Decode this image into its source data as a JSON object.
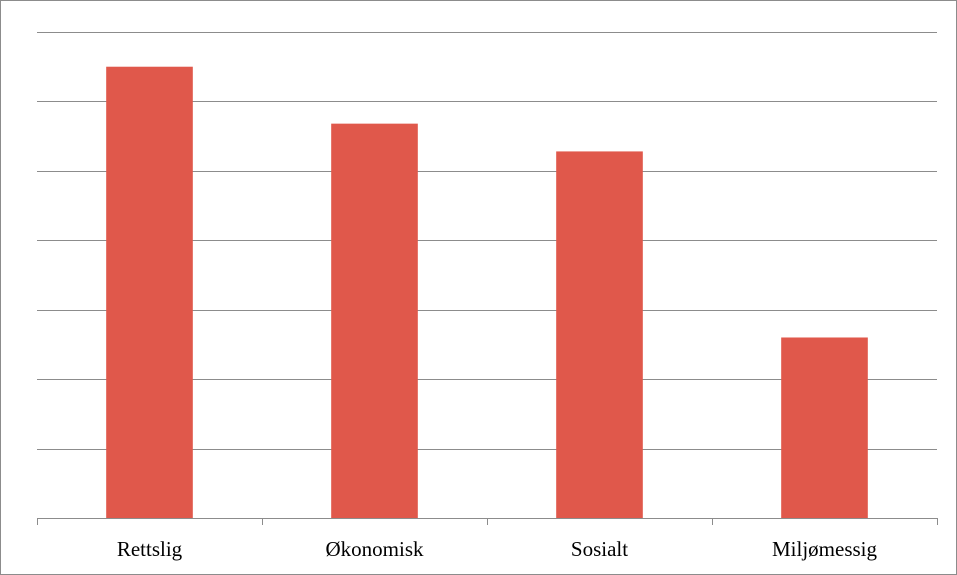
{
  "colors": {
    "bar": "#e0584b",
    "gridline": "#8c8c8c",
    "axis": "#8c8c8c",
    "border": "#8c8c8c",
    "background": "#ffffff"
  },
  "chart_data": {
    "type": "bar",
    "title": "",
    "xlabel": "",
    "ylabel": "",
    "categories": [
      "Rettslig",
      "Økonomisk",
      "Sosialt",
      "Miljømessig"
    ],
    "values": [
      6.5,
      5.68,
      5.28,
      2.6
    ],
    "ylim": [
      0,
      7
    ],
    "y_ticks_shown": false,
    "grid": true,
    "legend": "none"
  }
}
